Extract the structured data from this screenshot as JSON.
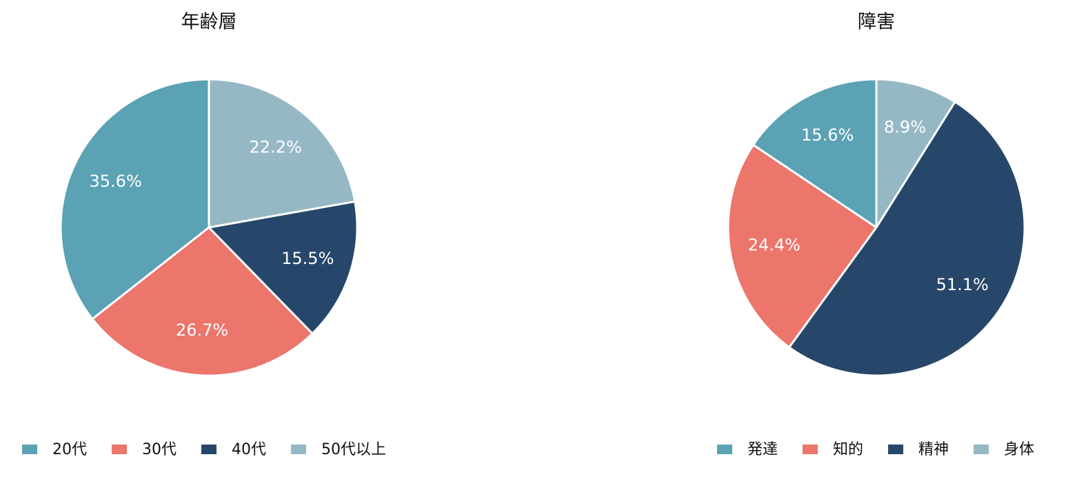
{
  "chart_data": [
    {
      "type": "pie",
      "title": "年齢層",
      "categories": [
        "20代",
        "30代",
        "40代",
        "50代以上"
      ],
      "values": [
        35.6,
        26.7,
        15.5,
        22.2
      ],
      "value_labels": [
        "35.6%",
        "26.7%",
        "15.5%",
        "22.2%"
      ],
      "colors": [
        "#5aa2b4",
        "#ec756c",
        "#26476a",
        "#96b8c4"
      ],
      "legend": "bottom"
    },
    {
      "type": "pie",
      "title": "障害",
      "categories": [
        "発達",
        "知的",
        "精神",
        "身体"
      ],
      "values": [
        15.6,
        24.4,
        51.1,
        8.9
      ],
      "value_labels": [
        "15.6%",
        "24.4%",
        "51.1%",
        "8.9%"
      ],
      "colors": [
        "#5aa2b4",
        "#ec756c",
        "#26476a",
        "#96b8c4"
      ],
      "legend": "bottom"
    }
  ]
}
